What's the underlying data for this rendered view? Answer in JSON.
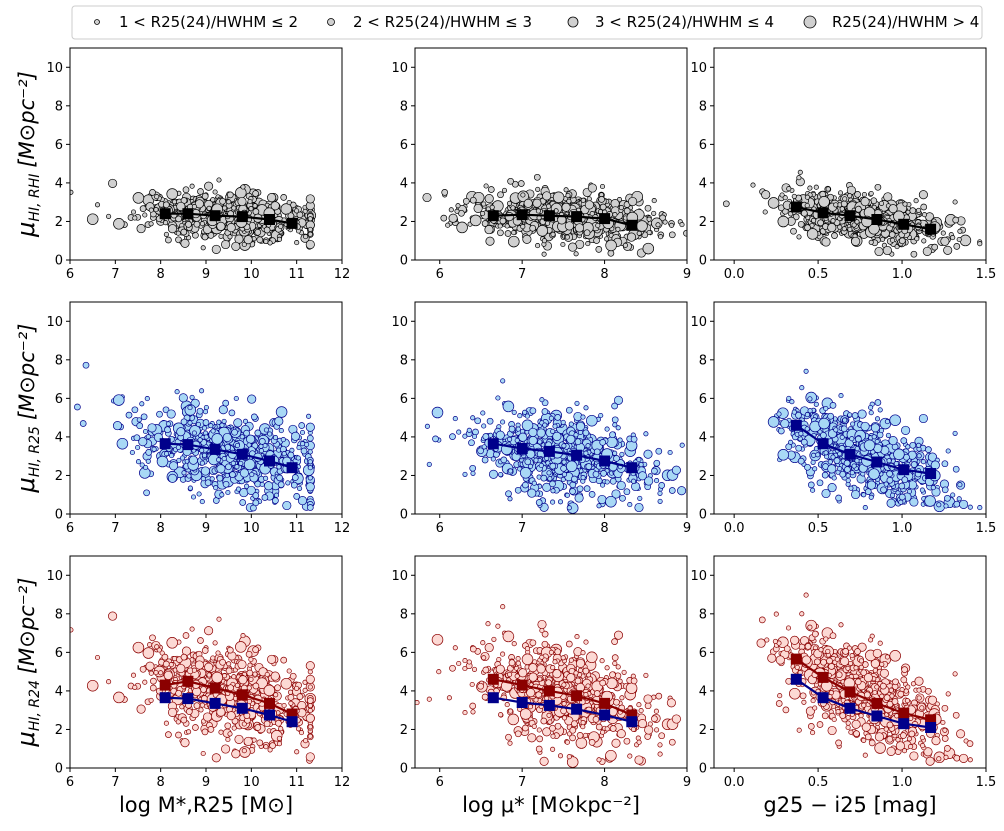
{
  "legend": {
    "items": [
      {
        "name": "bin1",
        "label": "1 < R25(24)/HWHM ≤ 2",
        "size": 2.5
      },
      {
        "name": "bin2",
        "label": "2 < R25(24)/HWHM ≤ 3",
        "size": 3.5
      },
      {
        "name": "bin3",
        "label": "3 < R25(24)/HWHM ≤ 4",
        "size": 5
      },
      {
        "name": "bin4",
        "label": "R25(24)/HWHM > 4",
        "size": 6
      }
    ]
  },
  "styles": {
    "rhi": {
      "fill": "#d0d0d0",
      "stroke": "#000000",
      "line": "#000000"
    },
    "r25": {
      "fill": "#a8d8f5",
      "stroke": "#00008b",
      "line": "#00008b"
    },
    "r24": {
      "fill": "#fcd9d4",
      "stroke": "#8b0000",
      "line": "#8b0000"
    }
  },
  "rows": [
    {
      "key": "rhi",
      "ylabel_sym": "μ",
      "ylabel_sub": "HI, RHI",
      "ylabel_unit": "[M⊙pc⁻²]"
    },
    {
      "key": "r25",
      "ylabel_sym": "μ",
      "ylabel_sub": "HI, R25",
      "ylabel_unit": "[M⊙pc⁻²]"
    },
    {
      "key": "r24",
      "ylabel_sym": "μ",
      "ylabel_sub": "HI, R24",
      "ylabel_unit": "[M⊙pc⁻²]"
    }
  ],
  "columns": [
    {
      "key": "mass",
      "xlabel": "log M*,R25 [M⊙]",
      "xlim": [
        6,
        12
      ],
      "xticks": [
        6,
        7,
        8,
        9,
        10,
        11,
        12
      ],
      "xcenter": 9.5,
      "xspread": 1.0
    },
    {
      "key": "mu",
      "xlabel": "log μ* [M⊙kpc⁻²]",
      "xlim": [
        5.7,
        9.0
      ],
      "xticks": [
        6,
        7,
        8,
        9
      ],
      "xcenter": 7.5,
      "xspread": 0.55
    },
    {
      "key": "color",
      "xlabel": "g25 − i25 [mag]",
      "xlim": [
        -0.12,
        1.5
      ],
      "xticks": [
        "0.0",
        "0.5",
        "1.0",
        "1.5"
      ],
      "xtick_vals": [
        0.0,
        0.5,
        1.0,
        1.5
      ],
      "xcenter": 0.75,
      "xspread": 0.24
    }
  ],
  "chart_data": {
    "type": "scatter",
    "title": "",
    "ylim": [
      0,
      11
    ],
    "yticks": [
      0,
      2,
      4,
      6,
      8,
      10
    ],
    "panels": [
      {
        "row": "rhi",
        "col": "mass",
        "binned": [
          {
            "series": "rhi",
            "x": [
              8.1,
              8.6,
              9.2,
              9.8,
              10.4,
              10.9
            ],
            "y": [
              2.4,
              2.4,
              2.3,
              2.25,
              2.1,
              1.9
            ]
          }
        ]
      },
      {
        "row": "rhi",
        "col": "mu",
        "binned": [
          {
            "series": "rhi",
            "x": [
              6.65,
              7.0,
              7.33,
              7.66,
              8.0,
              8.33
            ],
            "y": [
              2.3,
              2.35,
              2.3,
              2.25,
              2.15,
              1.8
            ]
          }
        ]
      },
      {
        "row": "rhi",
        "col": "color",
        "binned": [
          {
            "series": "rhi",
            "x": [
              0.37,
              0.53,
              0.69,
              0.85,
              1.01,
              1.17
            ],
            "y": [
              2.75,
              2.45,
              2.3,
              2.1,
              1.85,
              1.6
            ]
          }
        ]
      },
      {
        "row": "r25",
        "col": "mass",
        "binned": [
          {
            "series": "r25",
            "x": [
              8.1,
              8.6,
              9.2,
              9.8,
              10.4,
              10.9
            ],
            "y": [
              3.65,
              3.6,
              3.35,
              3.1,
              2.75,
              2.4
            ]
          }
        ]
      },
      {
        "row": "r25",
        "col": "mu",
        "binned": [
          {
            "series": "r25",
            "x": [
              6.65,
              7.0,
              7.33,
              7.66,
              8.0,
              8.33
            ],
            "y": [
              3.65,
              3.4,
              3.25,
              3.05,
              2.75,
              2.4
            ]
          }
        ]
      },
      {
        "row": "r25",
        "col": "color",
        "binned": [
          {
            "series": "r25",
            "x": [
              0.37,
              0.53,
              0.69,
              0.85,
              1.01,
              1.17
            ],
            "y": [
              4.6,
              3.65,
              3.1,
              2.7,
              2.3,
              2.1
            ]
          }
        ]
      },
      {
        "row": "r24",
        "col": "mass",
        "binned": [
          {
            "series": "r24",
            "x": [
              8.1,
              8.6,
              9.2,
              9.8,
              10.4,
              10.9
            ],
            "y": [
              4.3,
              4.5,
              4.15,
              3.8,
              3.35,
              2.8
            ]
          },
          {
            "series": "r25",
            "x": [
              8.1,
              8.6,
              9.2,
              9.8,
              10.4,
              10.9
            ],
            "y": [
              3.65,
              3.6,
              3.35,
              3.1,
              2.75,
              2.4
            ]
          }
        ]
      },
      {
        "row": "r24",
        "col": "mu",
        "binned": [
          {
            "series": "r24",
            "x": [
              6.65,
              7.0,
              7.33,
              7.66,
              8.0,
              8.33
            ],
            "y": [
              4.6,
              4.3,
              4.0,
              3.75,
              3.35,
              2.75
            ]
          },
          {
            "series": "r25",
            "x": [
              6.65,
              7.0,
              7.33,
              7.66,
              8.0,
              8.33
            ],
            "y": [
              3.65,
              3.4,
              3.25,
              3.05,
              2.75,
              2.4
            ]
          }
        ]
      },
      {
        "row": "r24",
        "col": "color",
        "binned": [
          {
            "series": "r24",
            "x": [
              0.37,
              0.53,
              0.69,
              0.85,
              1.01,
              1.17
            ],
            "y": [
              5.65,
              4.7,
              3.95,
              3.35,
              2.85,
              2.5
            ]
          },
          {
            "series": "r25",
            "x": [
              0.37,
              0.53,
              0.69,
              0.85,
              1.01,
              1.17
            ],
            "y": [
              4.6,
              3.65,
              3.1,
              2.7,
              2.3,
              2.1
            ]
          }
        ]
      }
    ],
    "scatter_note": "approx. 700 galaxies per panel; individual points synthesized around binned trends",
    "points_per_panel": 700,
    "row_scatter": {
      "rhi": {
        "base": 2.3,
        "sd": 0.75
      },
      "r25": {
        "base": 3.3,
        "sd": 1.3
      },
      "r24": {
        "base": 3.8,
        "sd": 1.5
      }
    }
  }
}
